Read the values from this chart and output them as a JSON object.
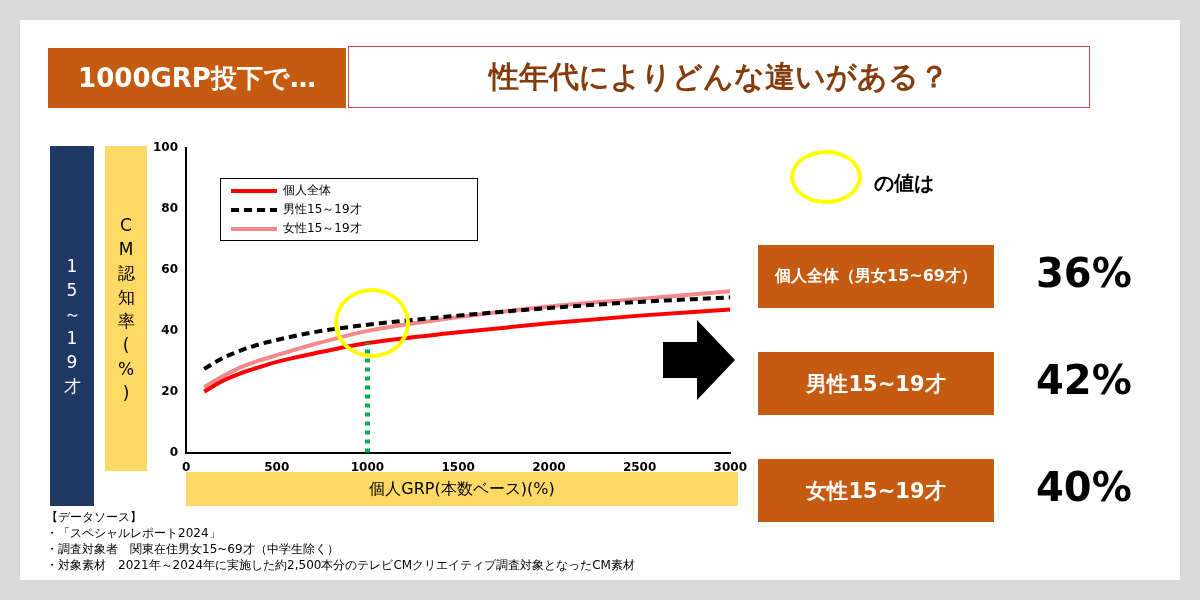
{
  "chart_data": {
    "type": "line",
    "title": "1000GRP投下で…",
    "subtitle": "性年代によりどんな違いがある？",
    "xlabel": "個人GRP(本数ベース)(%)",
    "ylabel": "CM認知率(%)",
    "x": [
      100,
      200,
      300,
      400,
      500,
      700,
      1000,
      1500,
      2000,
      2500,
      3000
    ],
    "series": [
      {
        "name": "個人全体",
        "color": "#ff0000",
        "line_style": "solid",
        "values": [
          20,
          23.5,
          26,
          28,
          29.8,
          32.5,
          36,
          39.5,
          42.5,
          45,
          47
        ]
      },
      {
        "name": "男性15～19才",
        "color": "#000000",
        "line_style": "dashed",
        "values": [
          27.5,
          31,
          33.5,
          35.5,
          37,
          39.5,
          42,
          45,
          47.5,
          49.5,
          51
        ]
      },
      {
        "name": "女性15～19才",
        "color": "#f4898b",
        "line_style": "solid",
        "values": [
          21.5,
          25,
          28,
          30.2,
          32,
          35.5,
          40,
          44.5,
          48,
          50.5,
          53
        ]
      }
    ],
    "xlim": [
      0,
      3000
    ],
    "xticks": [
      0,
      500,
      1000,
      1500,
      2000,
      2500,
      3000
    ],
    "ylim": [
      0,
      100
    ],
    "yticks": [
      0,
      20,
      40,
      60,
      80,
      100
    ],
    "grid": false,
    "legend": "top left",
    "marker": "none",
    "ref_lines": [
      {
        "axis": "x",
        "value": 1000,
        "color": "#00b050",
        "line_style": "dotted"
      }
    ],
    "annotations": [
      "15～19才",
      "【データソース】",
      "・「スペシャルレポート2024」",
      "・調査対象者　関東在住男女15~69才（中学生除く）",
      "・対象素材　2021年～2024年に実施した約2,500本分のテレビCMクリエイティブ調査対象となったCM素材",
      "の値は",
      "個人全体（男女15~69才）",
      "36%",
      "男性15~19才",
      "42%",
      "女性15~19才",
      "40%"
    ]
  }
}
